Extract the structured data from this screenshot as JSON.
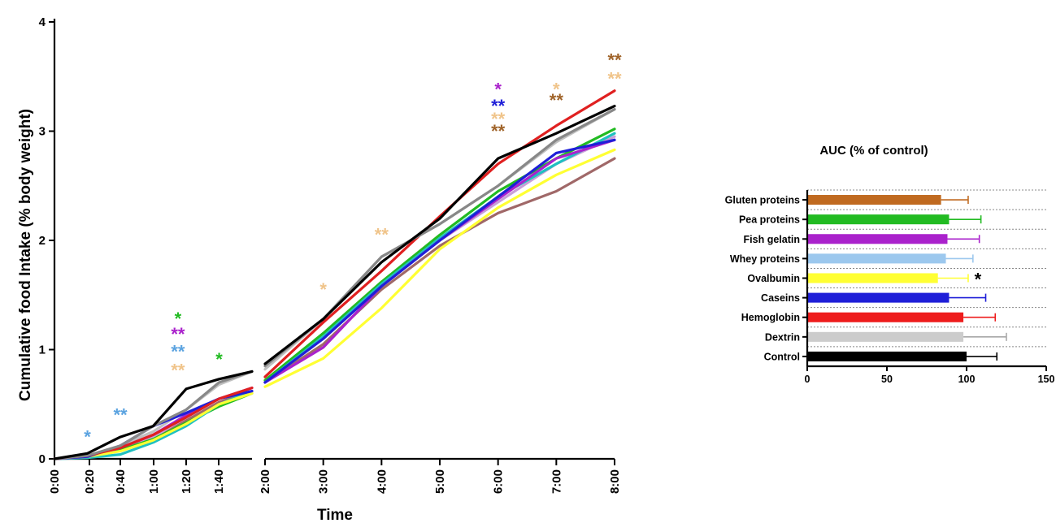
{
  "chart_data": [
    {
      "type": "line",
      "xlabel": "Time",
      "ylabel": "Cumulative food Intake (% body weight)",
      "ylim": [
        0,
        4
      ],
      "yticks": [
        "0",
        "1",
        "2",
        "3",
        "4"
      ],
      "x_segments": [
        {
          "ticks": [
            "0:00",
            "0:20",
            "0:40",
            "1:00",
            "1:20",
            "1:40"
          ]
        },
        {
          "ticks": [
            "2:00",
            "3:00",
            "4:00",
            "5:00",
            "6:00",
            "7:00",
            "8:00"
          ]
        }
      ],
      "series": [
        {
          "color": "#c0c0c0",
          "seg1": [
            [
              0,
              0
            ],
            [
              20,
              0.03
            ],
            [
              40,
              0.12
            ],
            [
              60,
              0.25
            ],
            [
              80,
              0.45
            ],
            [
              100,
              0.68
            ],
            [
              120,
              0.8
            ]
          ],
          "seg2": [
            [
              120,
              0.82
            ],
            [
              180,
              1.28
            ],
            [
              240,
              1.85
            ],
            [
              300,
              2.15
            ],
            [
              360,
              2.5
            ],
            [
              420,
              2.9
            ],
            [
              480,
              3.2
            ]
          ]
        },
        {
          "color": "#a06868",
          "seg1": [
            [
              0,
              0
            ],
            [
              20,
              0.02
            ],
            [
              40,
              0.08
            ],
            [
              60,
              0.18
            ],
            [
              80,
              0.35
            ],
            [
              100,
              0.52
            ],
            [
              120,
              0.62
            ]
          ],
          "seg2": [
            [
              120,
              0.7
            ],
            [
              180,
              1.05
            ],
            [
              240,
              1.55
            ],
            [
              300,
              1.95
            ],
            [
              360,
              2.25
            ],
            [
              420,
              2.45
            ],
            [
              480,
              2.75
            ]
          ]
        },
        {
          "color": "#c8a0d8",
          "seg1": [
            [
              0,
              0
            ],
            [
              20,
              0.02
            ],
            [
              40,
              0.1
            ],
            [
              60,
              0.2
            ],
            [
              80,
              0.38
            ],
            [
              100,
              0.55
            ],
            [
              120,
              0.65
            ]
          ],
          "seg2": [
            [
              120,
              0.7
            ],
            [
              180,
              1.1
            ],
            [
              240,
              1.6
            ],
            [
              300,
              2.0
            ],
            [
              360,
              2.35
            ],
            [
              420,
              2.7
            ],
            [
              480,
              2.95
            ]
          ]
        },
        {
          "color": "#22bb22",
          "seg1": [
            [
              0,
              0
            ],
            [
              20,
              0.02
            ],
            [
              40,
              0.08
            ],
            [
              60,
              0.18
            ],
            [
              80,
              0.33
            ],
            [
              100,
              0.48
            ],
            [
              120,
              0.6
            ]
          ],
          "seg2": [
            [
              120,
              0.72
            ],
            [
              180,
              1.15
            ],
            [
              240,
              1.62
            ],
            [
              300,
              2.05
            ],
            [
              360,
              2.45
            ],
            [
              420,
              2.75
            ],
            [
              480,
              3.02
            ]
          ]
        },
        {
          "color": "#20c0c0",
          "seg1": [
            [
              0,
              0
            ],
            [
              20,
              0.01
            ],
            [
              40,
              0.04
            ],
            [
              60,
              0.15
            ],
            [
              80,
              0.3
            ],
            [
              100,
              0.5
            ],
            [
              120,
              0.62
            ]
          ],
          "seg2": [
            [
              120,
              0.7
            ],
            [
              180,
              1.12
            ],
            [
              240,
              1.6
            ],
            [
              300,
              2.02
            ],
            [
              360,
              2.4
            ],
            [
              420,
              2.7
            ],
            [
              480,
              2.98
            ]
          ]
        },
        {
          "color": "#aa22cc",
          "seg1": [
            [
              0,
              0
            ],
            [
              20,
              0.02
            ],
            [
              40,
              0.1
            ],
            [
              60,
              0.22
            ],
            [
              80,
              0.4
            ],
            [
              100,
              0.55
            ],
            [
              120,
              0.65
            ]
          ],
          "seg2": [
            [
              120,
              0.7
            ],
            [
              180,
              1.02
            ],
            [
              240,
              1.58
            ],
            [
              300,
              2.0
            ],
            [
              360,
              2.38
            ],
            [
              420,
              2.75
            ],
            [
              480,
              2.92
            ]
          ]
        },
        {
          "color": "#ffff33",
          "seg1": [
            [
              0,
              0
            ],
            [
              20,
              0.02
            ],
            [
              40,
              0.07
            ],
            [
              60,
              0.17
            ],
            [
              80,
              0.32
            ],
            [
              100,
              0.5
            ],
            [
              120,
              0.6
            ]
          ],
          "seg2": [
            [
              120,
              0.66
            ],
            [
              180,
              0.92
            ],
            [
              240,
              1.38
            ],
            [
              300,
              1.92
            ],
            [
              360,
              2.3
            ],
            [
              420,
              2.6
            ],
            [
              480,
              2.83
            ]
          ]
        },
        {
          "color": "#1f1fd8",
          "seg1": [
            [
              0,
              0
            ],
            [
              20,
              0.02
            ],
            [
              40,
              0.12
            ],
            [
              60,
              0.3
            ],
            [
              80,
              0.42
            ],
            [
              100,
              0.55
            ],
            [
              120,
              0.62
            ]
          ],
          "seg2": [
            [
              120,
              0.7
            ],
            [
              180,
              1.1
            ],
            [
              240,
              1.58
            ],
            [
              300,
              2.0
            ],
            [
              360,
              2.4
            ],
            [
              420,
              2.8
            ],
            [
              480,
              2.92
            ]
          ]
        },
        {
          "color": "#e02020",
          "seg1": [
            [
              0,
              0
            ],
            [
              20,
              0.03
            ],
            [
              40,
              0.1
            ],
            [
              60,
              0.22
            ],
            [
              80,
              0.38
            ],
            [
              100,
              0.55
            ],
            [
              120,
              0.65
            ]
          ],
          "seg2": [
            [
              120,
              0.75
            ],
            [
              180,
              1.25
            ],
            [
              240,
              1.72
            ],
            [
              300,
              2.22
            ],
            [
              360,
              2.7
            ],
            [
              420,
              3.05
            ],
            [
              480,
              3.37
            ]
          ]
        },
        {
          "color": "#888888",
          "seg1": [
            [
              0,
              0
            ],
            [
              20,
              0.03
            ],
            [
              40,
              0.12
            ],
            [
              60,
              0.3
            ],
            [
              80,
              0.45
            ],
            [
              100,
              0.7
            ],
            [
              120,
              0.8
            ]
          ],
          "seg2": [
            [
              120,
              0.85
            ],
            [
              180,
              1.28
            ],
            [
              240,
              1.85
            ],
            [
              300,
              2.15
            ],
            [
              360,
              2.5
            ],
            [
              420,
              2.92
            ],
            [
              480,
              3.2
            ]
          ]
        },
        {
          "color": "#000000",
          "seg1": [
            [
              0,
              0
            ],
            [
              20,
              0.05
            ],
            [
              40,
              0.2
            ],
            [
              60,
              0.3
            ],
            [
              80,
              0.64
            ],
            [
              100,
              0.73
            ],
            [
              120,
              0.8
            ]
          ],
          "seg2": [
            [
              120,
              0.87
            ],
            [
              180,
              1.28
            ],
            [
              240,
              1.8
            ],
            [
              300,
              2.2
            ],
            [
              360,
              2.75
            ],
            [
              420,
              2.98
            ],
            [
              480,
              3.23
            ]
          ]
        }
      ],
      "annotations": [
        {
          "text": "*",
          "x": 20,
          "y": 0.22,
          "color": "#5ba3e0"
        },
        {
          "text": "**",
          "x": 40,
          "y": 0.42,
          "color": "#5ba3e0"
        },
        {
          "text": "*",
          "x": 75,
          "y": 1.3,
          "color": "#22bb22"
        },
        {
          "text": "**",
          "x": 75,
          "y": 1.16,
          "color": "#aa22cc"
        },
        {
          "text": "**",
          "x": 75,
          "y": 1.0,
          "color": "#5ba3e0"
        },
        {
          "text": "**",
          "x": 75,
          "y": 0.83,
          "color": "#f0c48a"
        },
        {
          "text": "*",
          "x": 100,
          "y": 0.93,
          "color": "#22bb22"
        },
        {
          "text": "*",
          "x": 180,
          "y": 1.57,
          "color": "#f0c48a"
        },
        {
          "text": "**",
          "x": 240,
          "y": 2.07,
          "color": "#f0c48a"
        },
        {
          "text": "*",
          "x": 360,
          "y": 3.4,
          "color": "#aa22cc"
        },
        {
          "text": "**",
          "x": 360,
          "y": 3.25,
          "color": "#1f1fd8"
        },
        {
          "text": "**",
          "x": 360,
          "y": 3.13,
          "color": "#f0c48a"
        },
        {
          "text": "**",
          "x": 360,
          "y": 3.02,
          "color": "#a0642a"
        },
        {
          "text": "*",
          "x": 420,
          "y": 3.4,
          "color": "#f0c48a"
        },
        {
          "text": "**",
          "x": 420,
          "y": 3.3,
          "color": "#a0642a"
        },
        {
          "text": "**",
          "x": 480,
          "y": 3.67,
          "color": "#a0642a"
        },
        {
          "text": "**",
          "x": 480,
          "y": 3.5,
          "color": "#f0c48a"
        }
      ]
    },
    {
      "type": "bar",
      "orientation": "horizontal",
      "title": "AUC (% of control)",
      "categories": [
        "Gluten proteins",
        "Pea proteins",
        "Fish gelatin",
        "Whey proteins",
        "Ovalbumin",
        "Caseins",
        "Hemoglobin",
        "Dextrin",
        "Control"
      ],
      "values": [
        84,
        89,
        88,
        87,
        82,
        89,
        98,
        98,
        100
      ],
      "errors": [
        17,
        20,
        20,
        17,
        19,
        23,
        20,
        27,
        19
      ],
      "colors": [
        "#c06a20",
        "#22bb22",
        "#aa22cc",
        "#9cc8ee",
        "#ffff33",
        "#1f1fd8",
        "#ee1c1c",
        "#cccccc",
        "#000000"
      ],
      "xlim": [
        0,
        150
      ],
      "xticks": [
        "0",
        "50",
        "100",
        "150"
      ],
      "significance": [
        {
          "category": "Ovalbumin",
          "text": "*"
        }
      ]
    }
  ]
}
